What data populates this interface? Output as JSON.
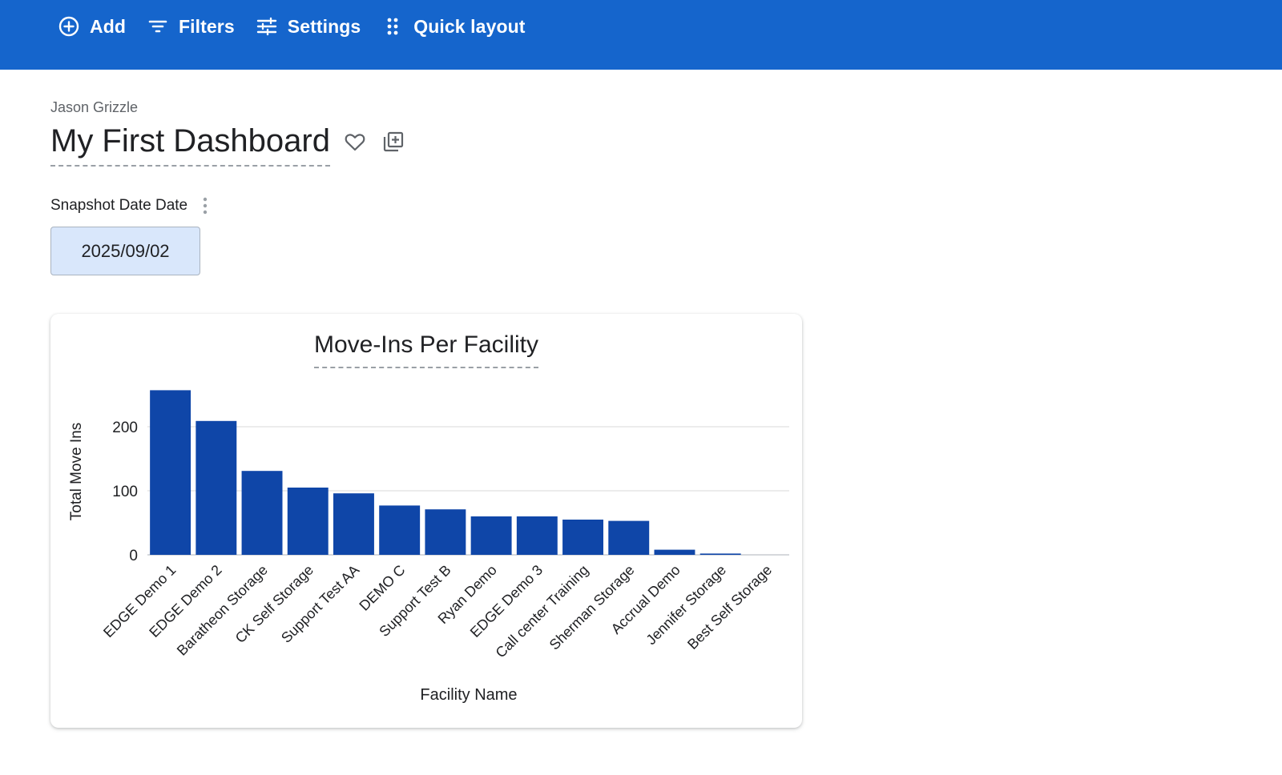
{
  "toolbar": {
    "add": {
      "label": "Add",
      "icon": "plus-circle-icon"
    },
    "filters": {
      "label": "Filters",
      "icon": "filter-lines-icon"
    },
    "settings": {
      "label": "Settings",
      "icon": "sliders-icon"
    },
    "quick_layout": {
      "label": "Quick layout",
      "icon": "drag-dots-icon"
    },
    "background_color": "#1565cc"
  },
  "dashboard": {
    "owner": "Jason Grizzle",
    "title": "My First Dashboard",
    "favorite_icon": "heart-outline-icon",
    "add_tile_icon": "library-add-icon"
  },
  "filter": {
    "label": "Snapshot Date Date",
    "value": "2025/09/02",
    "menu_icon": "kebab-vertical-icon"
  },
  "chart_data": {
    "type": "bar",
    "title": "Move-Ins Per Facility",
    "xlabel": "Facility Name",
    "ylabel": "Total Move Ins",
    "categories": [
      "EDGE Demo 1",
      "EDGE Demo 2",
      "Baratheon Storage",
      "CK Self Storage",
      "Support Test AA",
      "DEMO C",
      "Support Test B",
      "Ryan Demo",
      "EDGE Demo 3",
      "Call center Training",
      "Sherman Storage",
      "Accrual Demo",
      "Jennifer Storage",
      "Best Self Storage"
    ],
    "values": [
      257,
      209,
      131,
      105,
      96,
      77,
      71,
      60,
      60,
      55,
      53,
      8,
      2,
      0
    ],
    "yticks": [
      0,
      100,
      200
    ],
    "ylim": [
      0,
      260
    ],
    "grid": true,
    "bar_color": "#0f46a8"
  }
}
